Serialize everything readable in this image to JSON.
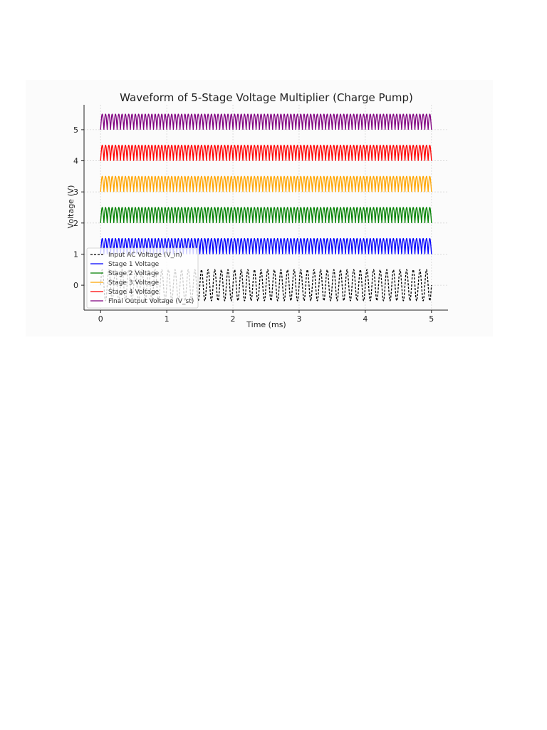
{
  "chart_data": {
    "type": "line",
    "title": "Waveform of 5-Stage Voltage Multiplier (Charge Pump)",
    "xlabel": "Time (ms)",
    "ylabel": "Voltage (V)",
    "xlim": [
      -0.25,
      5.25
    ],
    "ylim": [
      -0.8,
      5.8
    ],
    "xticks": [
      0,
      1,
      2,
      3,
      4,
      5
    ],
    "yticks": [
      0,
      1,
      2,
      3,
      4,
      5
    ],
    "grid": true,
    "legend_position": "lower-left",
    "frequency_khz": 10,
    "x_range": [
      0,
      5
    ],
    "series": [
      {
        "name": "Input AC Voltage (V_in)",
        "color": "#000000",
        "dashed": true,
        "offset": 0,
        "amplitude": 0.5,
        "shape": "sine"
      },
      {
        "name": "Stage 1 Voltage",
        "color": "#0000ff",
        "dashed": false,
        "offset": 1,
        "amplitude": 0.5,
        "shape": "rectified"
      },
      {
        "name": "Stage 2 Voltage",
        "color": "#008000",
        "dashed": false,
        "offset": 2,
        "amplitude": 0.5,
        "shape": "rectified"
      },
      {
        "name": "Stage 3 Voltage",
        "color": "#ffa500",
        "dashed": false,
        "offset": 3,
        "amplitude": 0.5,
        "shape": "rectified"
      },
      {
        "name": "Stage 4 Voltage",
        "color": "#ff0000",
        "dashed": false,
        "offset": 4,
        "amplitude": 0.5,
        "shape": "rectified"
      },
      {
        "name": "Final Output Voltage (V_st)",
        "color": "#800080",
        "dashed": false,
        "offset": 5,
        "amplitude": 0.5,
        "shape": "rectified"
      }
    ]
  }
}
